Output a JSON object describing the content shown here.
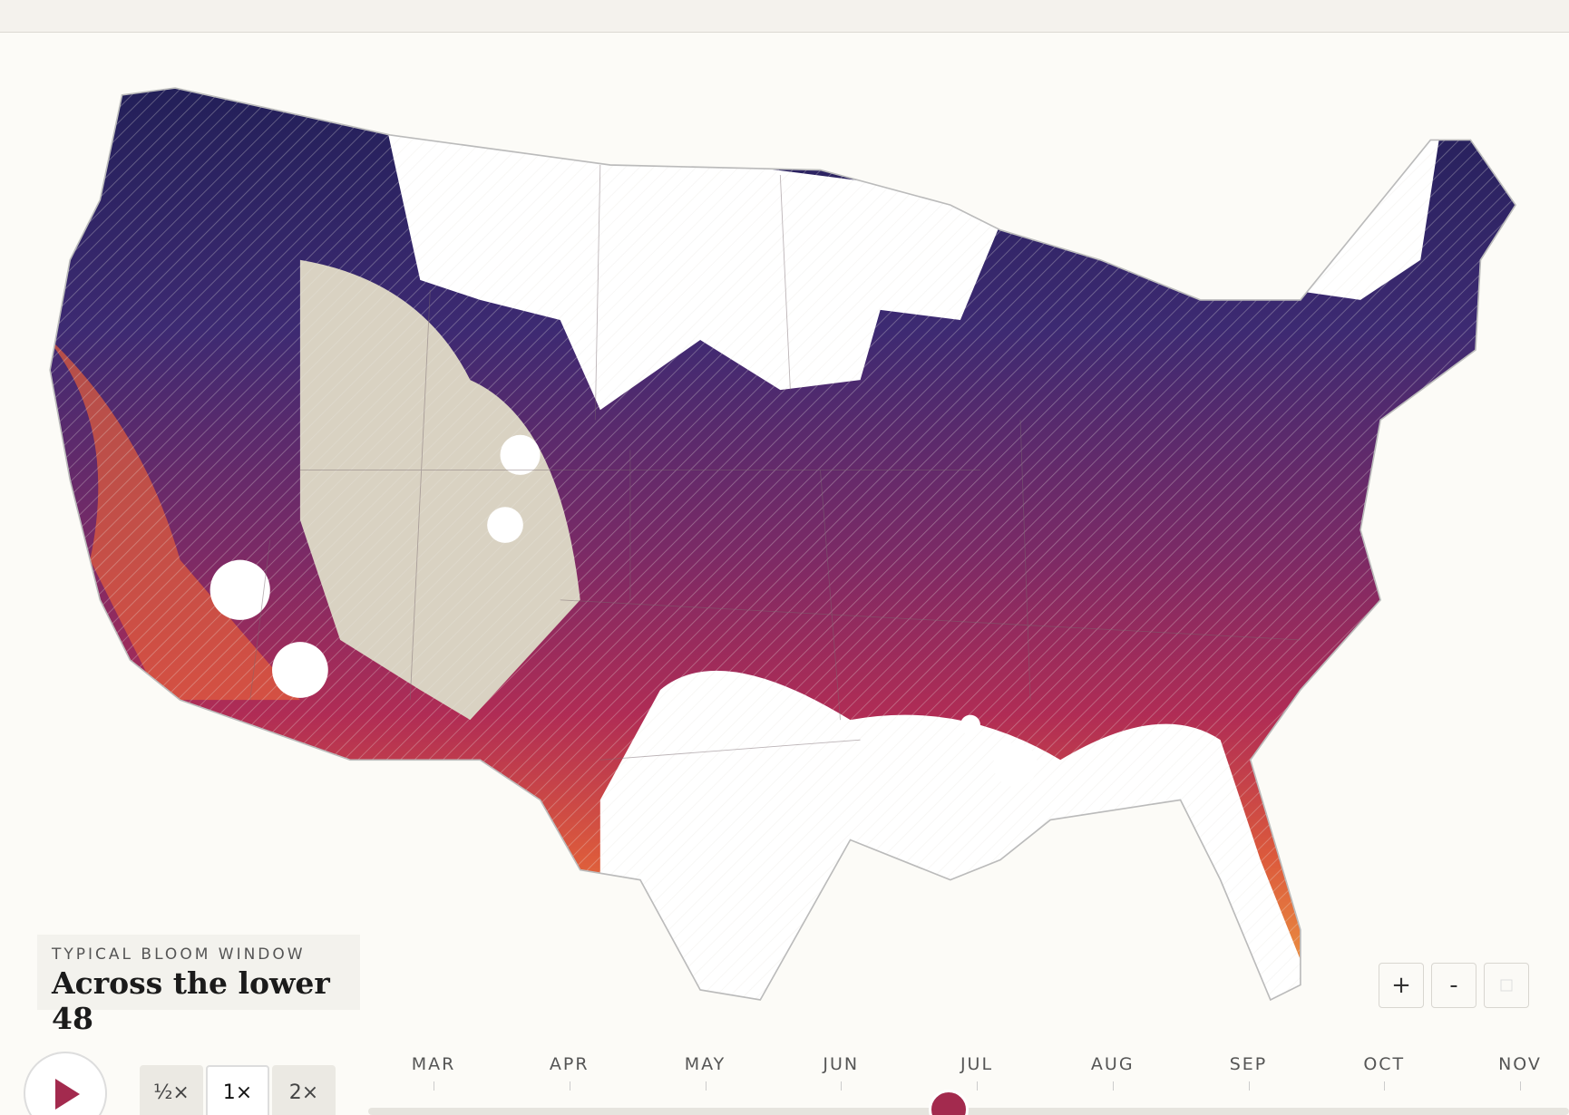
{
  "legend": {
    "eyebrow": "TYPICAL BLOOM WINDOW",
    "title": "Across the lower 48"
  },
  "speed": [
    "½×",
    "1×",
    "2×"
  ],
  "zoom": [
    "+",
    "-"
  ],
  "timeline": {
    "months": [
      "MAR",
      "APR",
      "MAY",
      "JUN",
      "JUL",
      "AUG",
      "SEP",
      "OCT",
      "NOV"
    ]
  }
}
